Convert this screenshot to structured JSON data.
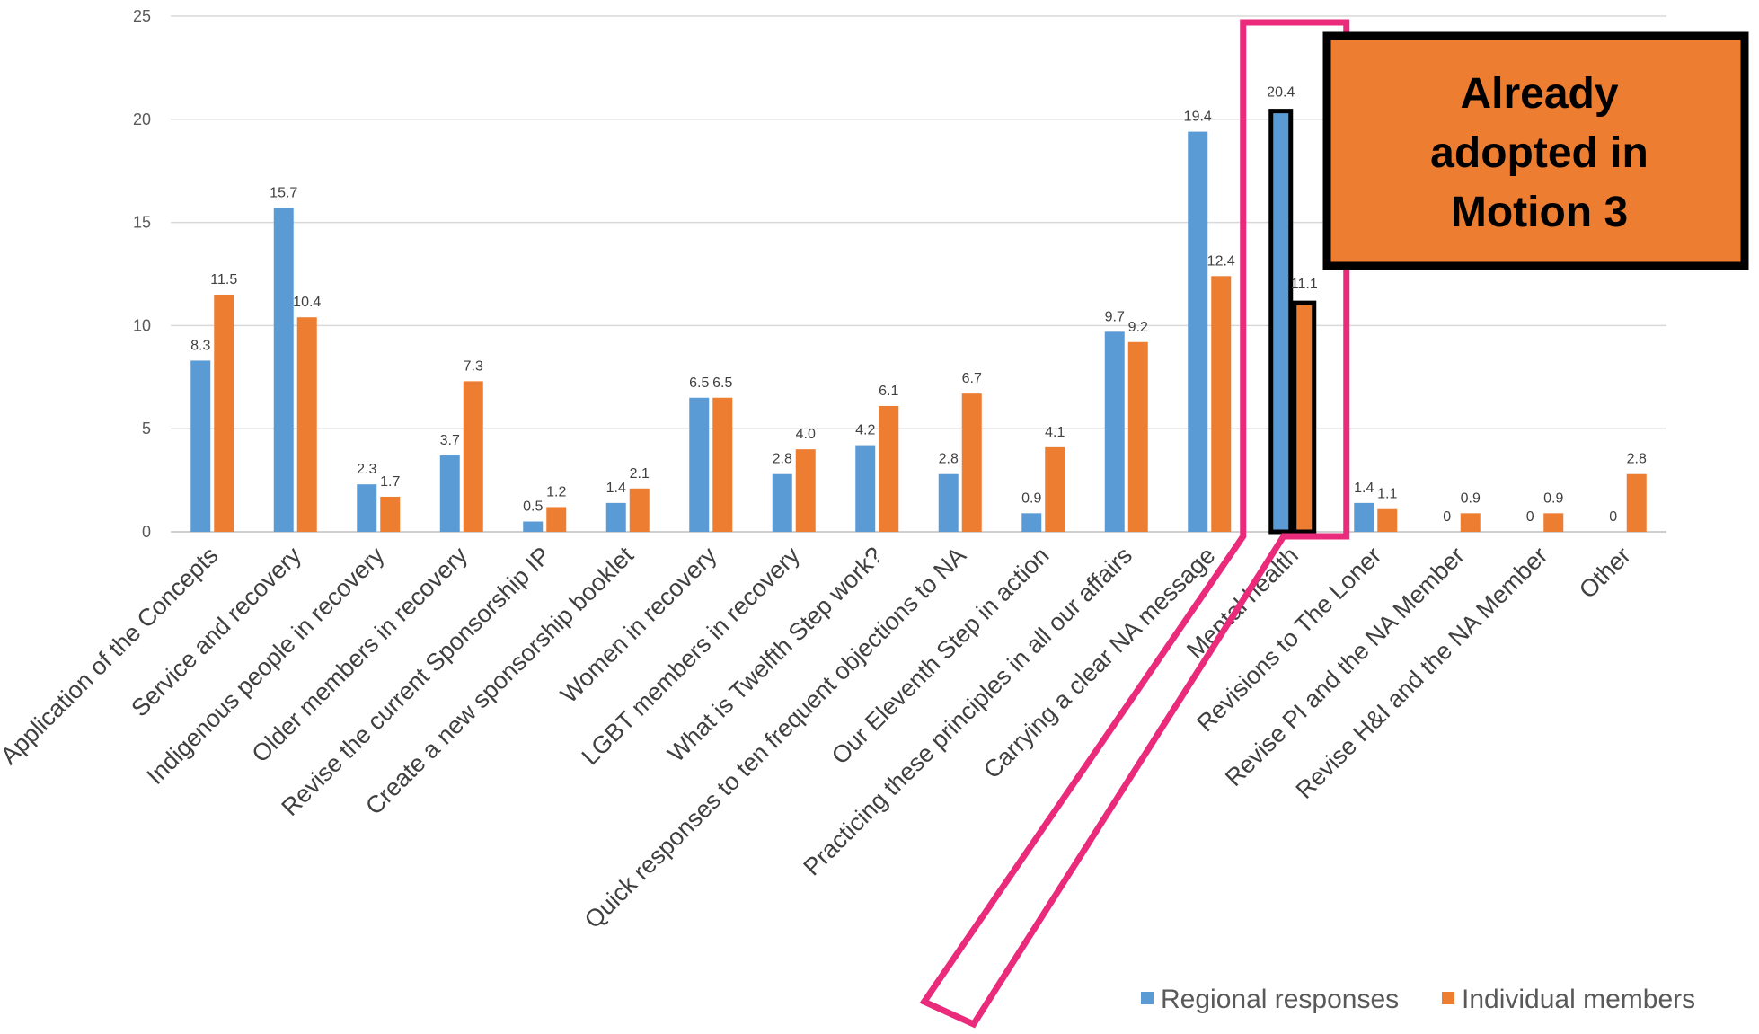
{
  "chart_data": {
    "type": "bar",
    "categories": [
      "Application of the Concepts",
      "Service and recovery",
      "Indigenous people in recovery",
      "Older members in recovery",
      "Revise the current Sponsorship IP",
      "Create a new sponsorship booklet",
      "Women in recovery",
      "LGBT members in recovery",
      "What is Twelfth Step work?",
      "Quick responses to ten frequent objections to NA",
      "Our Eleventh Step in action",
      "Practicing these principles in all our affairs",
      "Carrying a clear NA message",
      "Mental health",
      "Revisions to The Loner",
      "Revise PI and the NA Member",
      "Revise H&I and the NA Member",
      "Other"
    ],
    "series": [
      {
        "name": "Regional responses",
        "color": "#5b9bd5",
        "values": [
          8.3,
          15.7,
          2.3,
          3.7,
          0.5,
          1.4,
          6.5,
          2.8,
          4.2,
          2.8,
          0.9,
          9.7,
          19.4,
          20.4,
          1.4,
          0,
          0,
          0
        ],
        "labels": [
          "8.3",
          "15.7",
          "2.3",
          "3.7",
          "0.5",
          "1.4",
          "6.5",
          "2.8",
          "4.2",
          "2.8",
          "0.9",
          "9.7",
          "19.4",
          "20.4",
          "1.4",
          "0",
          "0",
          "0"
        ]
      },
      {
        "name": "Individual members",
        "color": "#ed7d31",
        "values": [
          11.5,
          10.4,
          1.7,
          7.3,
          1.2,
          2.1,
          6.5,
          4.0,
          6.1,
          6.7,
          4.1,
          9.2,
          12.4,
          11.1,
          1.1,
          0.9,
          0.9,
          2.8
        ],
        "labels": [
          "11.5",
          "10.4",
          "1.7",
          "7.3",
          "1.2",
          "2.1",
          "6.5",
          "4.0",
          "6.1",
          "6.7",
          "4.1",
          "9.2",
          "12.4",
          "11.1",
          "1.1",
          "0.9",
          "0.9",
          "2.8"
        ]
      }
    ],
    "ylim": [
      0,
      25
    ],
    "yticks": [
      "0",
      "5",
      "10",
      "15",
      "20",
      "25"
    ],
    "grid": true,
    "legend_position": "bottom-right",
    "highlight_category": "Mental health",
    "highlight_color": "#ea2a7b",
    "callout": {
      "lines": [
        "Already",
        "adopted in",
        "Motion 3"
      ],
      "fill": "#ed7d31",
      "border": "#000000"
    }
  }
}
